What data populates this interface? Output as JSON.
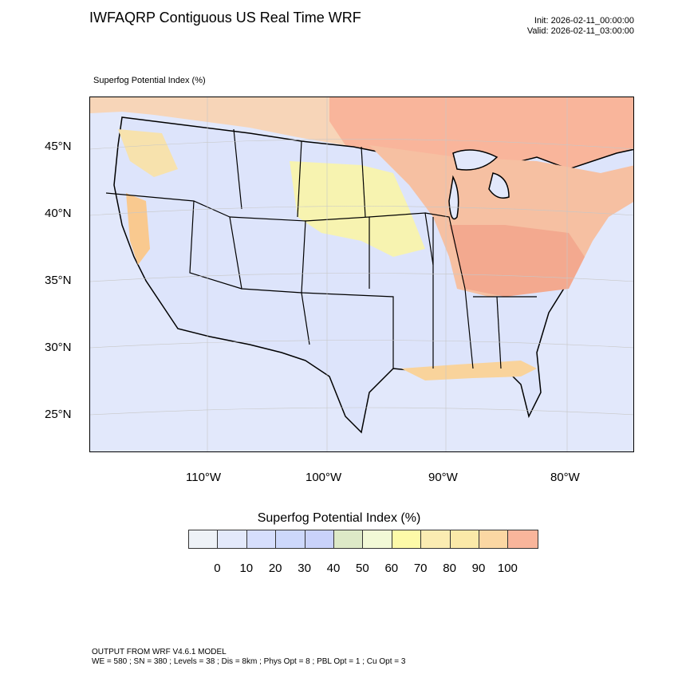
{
  "header": {
    "title": "IWFAQRP Contiguous US Real Time WRF",
    "init": "Init: 2026-02-11_00:00:00",
    "valid": "Valid: 2026-02-11_03:00:00"
  },
  "map": {
    "subtitle": "Superfog Potential Index   (%)",
    "lat_labels": [
      "45°N",
      "40°N",
      "35°N",
      "30°N",
      "25°N"
    ],
    "lon_labels": [
      "110°W",
      "100°W",
      "90°W",
      "80°W"
    ]
  },
  "colorbar": {
    "title": "Superfog Potential Index  (%)",
    "colors": [
      "#eef2f7",
      "#e3e9fb",
      "#d6defc",
      "#cdd8fb",
      "#c9d2fa",
      "#dde9c7",
      "#f2f9d6",
      "#fdfaa8",
      "#fbecb2",
      "#fbe9a8",
      "#fbd7a3",
      "#f9b59b"
    ],
    "labels": [
      "0",
      "10",
      "20",
      "30",
      "40",
      "50",
      "60",
      "70",
      "80",
      "90",
      "100"
    ]
  },
  "footer": {
    "line1": "OUTPUT FROM WRF V4.6.1 MODEL",
    "line2": "WE = 580 ; SN = 380 ; Levels = 38 ; Dis = 8km ; Phys Opt = 8 ; PBL Opt = 1 ; Cu Opt = 3"
  }
}
